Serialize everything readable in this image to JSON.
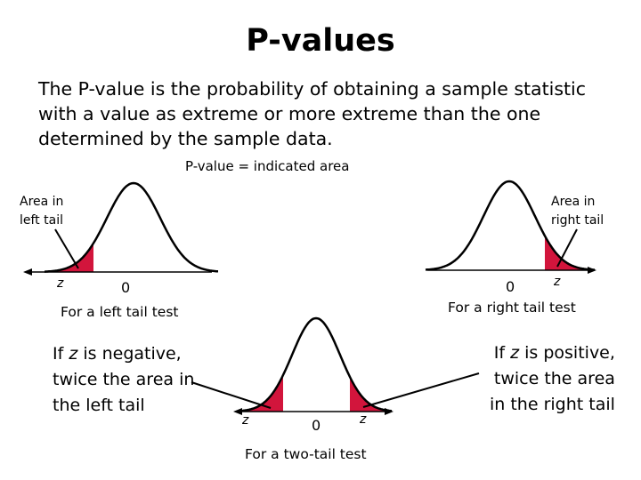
{
  "title": "P-values",
  "intro_lines": [
    "The P-value is the probability of obtaining a sample statistic",
    "with a value as extreme or more extreme than the one",
    "determined by the sample data."
  ],
  "pvalue_note": "P-value = indicated area",
  "left_tail": {
    "label_lines": [
      "Area in",
      "left tail"
    ],
    "z_label": "z",
    "zero_label": "0",
    "caption": "For a left tail test"
  },
  "right_tail": {
    "label_lines": [
      "Area in",
      "right tail"
    ],
    "z_label": "z",
    "zero_label": "0",
    "caption": "For a right tail test"
  },
  "two_tail": {
    "z_left_label": "z",
    "z_right_label": "z",
    "zero_label": "0",
    "caption": "For a two-tail test"
  },
  "negative_note": {
    "line1_pre": "If ",
    "line1_var": "z",
    "line1_post": " is negative,",
    "line2": "twice the area in",
    "line3": "the left tail"
  },
  "positive_note": {
    "line1_pre": "If ",
    "line1_var": "z",
    "line1_post": " is positive,",
    "line2": "twice the area",
    "line3": "in the right tail"
  },
  "colors": {
    "shade": "#d2153c",
    "curve": "#000000",
    "axis": "#000000"
  }
}
